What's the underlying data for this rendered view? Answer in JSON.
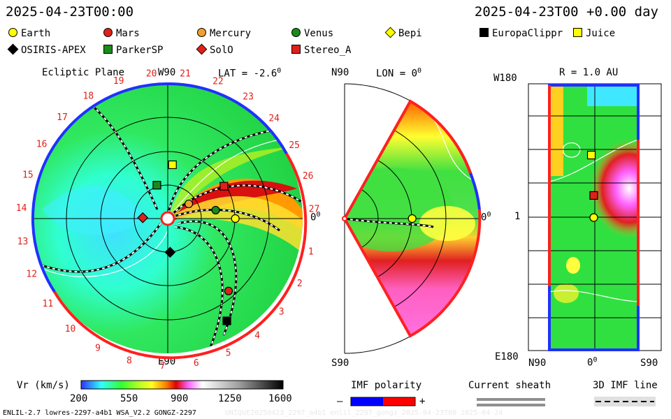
{
  "header": {
    "date_left": "2025-04-23T00:00",
    "date_right": "2025-04-23T00 +0.00 day"
  },
  "legend": [
    {
      "name": "Earth",
      "color": "#ffff00",
      "shape": "circle"
    },
    {
      "name": "Mars",
      "color": "#e0201a",
      "shape": "hexagon"
    },
    {
      "name": "Mercury",
      "color": "#f0a030",
      "shape": "circle"
    },
    {
      "name": "Venus",
      "color": "#1a8a1a",
      "shape": "circle"
    },
    {
      "name": "Bepi",
      "color": "#ffff00",
      "shape": "diamond"
    },
    {
      "name": "EuropaClippr",
      "color": "#000000",
      "shape": "square"
    },
    {
      "name": "Juice",
      "color": "#ffff00",
      "shape": "square"
    },
    {
      "name": "OSIRIS-APEX",
      "color": "#000000",
      "shape": "diamond"
    },
    {
      "name": "ParkerSP",
      "color": "#1a8a1a",
      "shape": "square"
    },
    {
      "name": "SolO",
      "color": "#e0201a",
      "shape": "diamond"
    },
    {
      "name": "Stereo_A",
      "color": "#e0201a",
      "shape": "square"
    }
  ],
  "ecliptic": {
    "title": "Ecliptic Plane",
    "lat": "LAT = -2.6",
    "lat_deg": "0",
    "top": "W90",
    "bottom": "E90",
    "right": "0",
    "right_deg": "0",
    "carrington": [
      "1",
      "2",
      "3",
      "4",
      "5",
      "6",
      "7",
      "8",
      "9",
      "10",
      "11",
      "12",
      "13",
      "14",
      "15",
      "16",
      "17",
      "18",
      "19",
      "20",
      "21",
      "22",
      "23",
      "24",
      "25",
      "26",
      "27"
    ]
  },
  "meridional": {
    "top_left": "N90",
    "lon": "LON = 0",
    "lon_deg": "0",
    "bottom_left": "S90",
    "right": "0",
    "right_deg": "0"
  },
  "sphere": {
    "title": "R = 1.0 AU",
    "top_left": "W180",
    "mid_left": "1",
    "bottom_left": "E180",
    "x_left": "N90",
    "x_mid": "0",
    "x_mid_deg": "0",
    "x_right": "S90"
  },
  "colorbar": {
    "label": "Vr (km/s)",
    "ticks": [
      "200",
      "550",
      "900",
      "1250",
      "1600"
    ],
    "stops": [
      "#3030ff",
      "#30ffff",
      "#30ff30",
      "#c8ff20",
      "#ffff20",
      "#ff8000",
      "#e00000",
      "#ff60ff",
      "#ffffff",
      "#b0b0b0",
      "#000000"
    ]
  },
  "imf": {
    "label": "IMF polarity",
    "minus": "–",
    "plus": "+",
    "neg_color": "#0000ff",
    "pos_color": "#ff0000"
  },
  "sheath": {
    "label": "Current sheath"
  },
  "imfline": {
    "label": "3D IMF line"
  },
  "footer": {
    "model": "ENLIL-2.7 lowres-2297-a4b1 WSA_V2.2 GONGZ-2297",
    "watermark": "UNIQUE20250423_2297_a4b1 enlil_2297_gongz_2025-04-23T00  2025-04-24"
  },
  "chart_data": [
    {
      "type": "heatmap",
      "title": "Ecliptic Plane",
      "quantity": "Vr (km/s)",
      "range": [
        200,
        1600
      ],
      "bodies": [
        {
          "name": "Earth",
          "r_au": 1.0,
          "lon_deg": 0
        },
        {
          "name": "Mercury",
          "r_au": 0.38,
          "lon_deg": 35
        },
        {
          "name": "Venus",
          "r_au": 0.72,
          "lon_deg": 10
        },
        {
          "name": "Mars",
          "r_au": 1.4,
          "lon_deg": -50
        },
        {
          "name": "Stereo_A",
          "r_au": 0.96,
          "lon_deg": 30
        },
        {
          "name": "Juice",
          "r_au": 0.8,
          "lon_deg": 85
        },
        {
          "name": "ParkerSP",
          "r_au": 0.52,
          "lon_deg": 108
        },
        {
          "name": "SolO",
          "r_au": 0.37,
          "lon_deg": 178
        },
        {
          "name": "OSIRIS-APEX",
          "r_au": 0.5,
          "lon_deg": -86
        },
        {
          "name": "EuropaClippr",
          "r_au": 1.75,
          "lon_deg": -60
        }
      ]
    },
    {
      "type": "heatmap",
      "title": "LON = 0",
      "quantity": "Vr (km/s)",
      "latitude_range": [
        -60,
        60
      ],
      "bodies": [
        {
          "name": "Earth",
          "r_au": 1.0,
          "lat_deg": 0
        }
      ]
    },
    {
      "type": "heatmap",
      "title": "R = 1.0 AU",
      "quantity": "Vr (km/s)",
      "bodies": [
        {
          "name": "Earth",
          "lat_deg": 0,
          "lon_deg": 0
        },
        {
          "name": "Stereo_A",
          "lat_deg": 0,
          "lon_deg": 30
        },
        {
          "name": "Juice",
          "lat_deg": 5,
          "lon_deg": 85
        }
      ]
    }
  ]
}
